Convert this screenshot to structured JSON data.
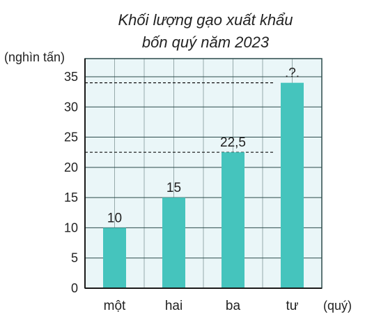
{
  "chart_data": {
    "type": "bar",
    "title_line1": "Khối lượng gạo xuất khẩu",
    "title_line2": "bốn quý năm 2023",
    "ylabel": "(nghìn tấn)",
    "xlabel": "(quý)",
    "categories": [
      "một",
      "hai",
      "ba",
      "tư"
    ],
    "values": [
      10,
      15,
      22.5,
      34
    ],
    "data_labels": [
      "10",
      "15",
      "22,5",
      ".?."
    ],
    "dashed_guides": [
      22.5,
      34
    ],
    "yticks": [
      0,
      5,
      10,
      15,
      20,
      25,
      30,
      35
    ],
    "ylim": [
      0,
      38
    ],
    "grid": true,
    "colors": {
      "bar": "#45c4bd",
      "plot_bg": "#eaf6f8",
      "grid": "#2b4a4a",
      "text": "#222222"
    }
  }
}
